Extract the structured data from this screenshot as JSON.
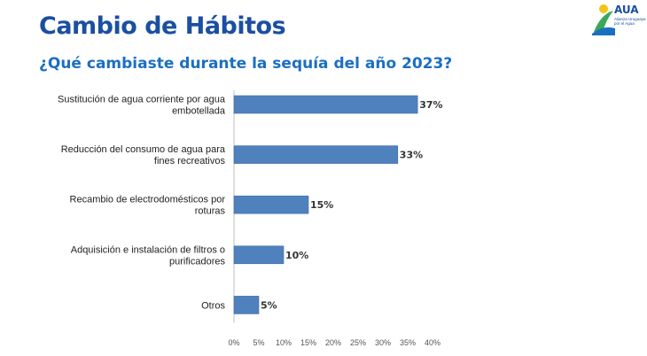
{
  "header": {
    "title": "Cambio de Hábitos",
    "subtitle": "¿Qué cambiaste durante la sequía del año 2023?"
  },
  "logo": {
    "name": "AUA",
    "tagline": "Alianza Uruguaya por el Agua"
  },
  "colors": {
    "bar": "#4f81bd",
    "bar_edge": "#3f6ea6",
    "title": "#1b4fa0",
    "subtitle": "#1b6fc2"
  },
  "chart_data": {
    "type": "bar",
    "orientation": "horizontal",
    "categories": [
      [
        "Sustitución de agua corriente por agua",
        "embotellada"
      ],
      [
        "Reducción del consumo de agua para",
        "fines recreativos"
      ],
      [
        "Recambio de electrodomésticos por",
        "roturas"
      ],
      [
        "Adquisición e instalación de filtros o",
        "purificadores"
      ],
      [
        "Otros"
      ]
    ],
    "values": [
      37,
      33,
      15,
      10,
      5
    ],
    "value_labels": [
      "37%",
      "33%",
      "15%",
      "10%",
      "5%"
    ],
    "xlim": [
      0,
      40
    ],
    "xticks": [
      0,
      5,
      10,
      15,
      20,
      25,
      30,
      35,
      40
    ],
    "xtick_labels": [
      "0%",
      "5%",
      "10%",
      "15%",
      "20%",
      "25%",
      "30%",
      "35%",
      "40%"
    ],
    "grid": false,
    "legend": "none"
  }
}
